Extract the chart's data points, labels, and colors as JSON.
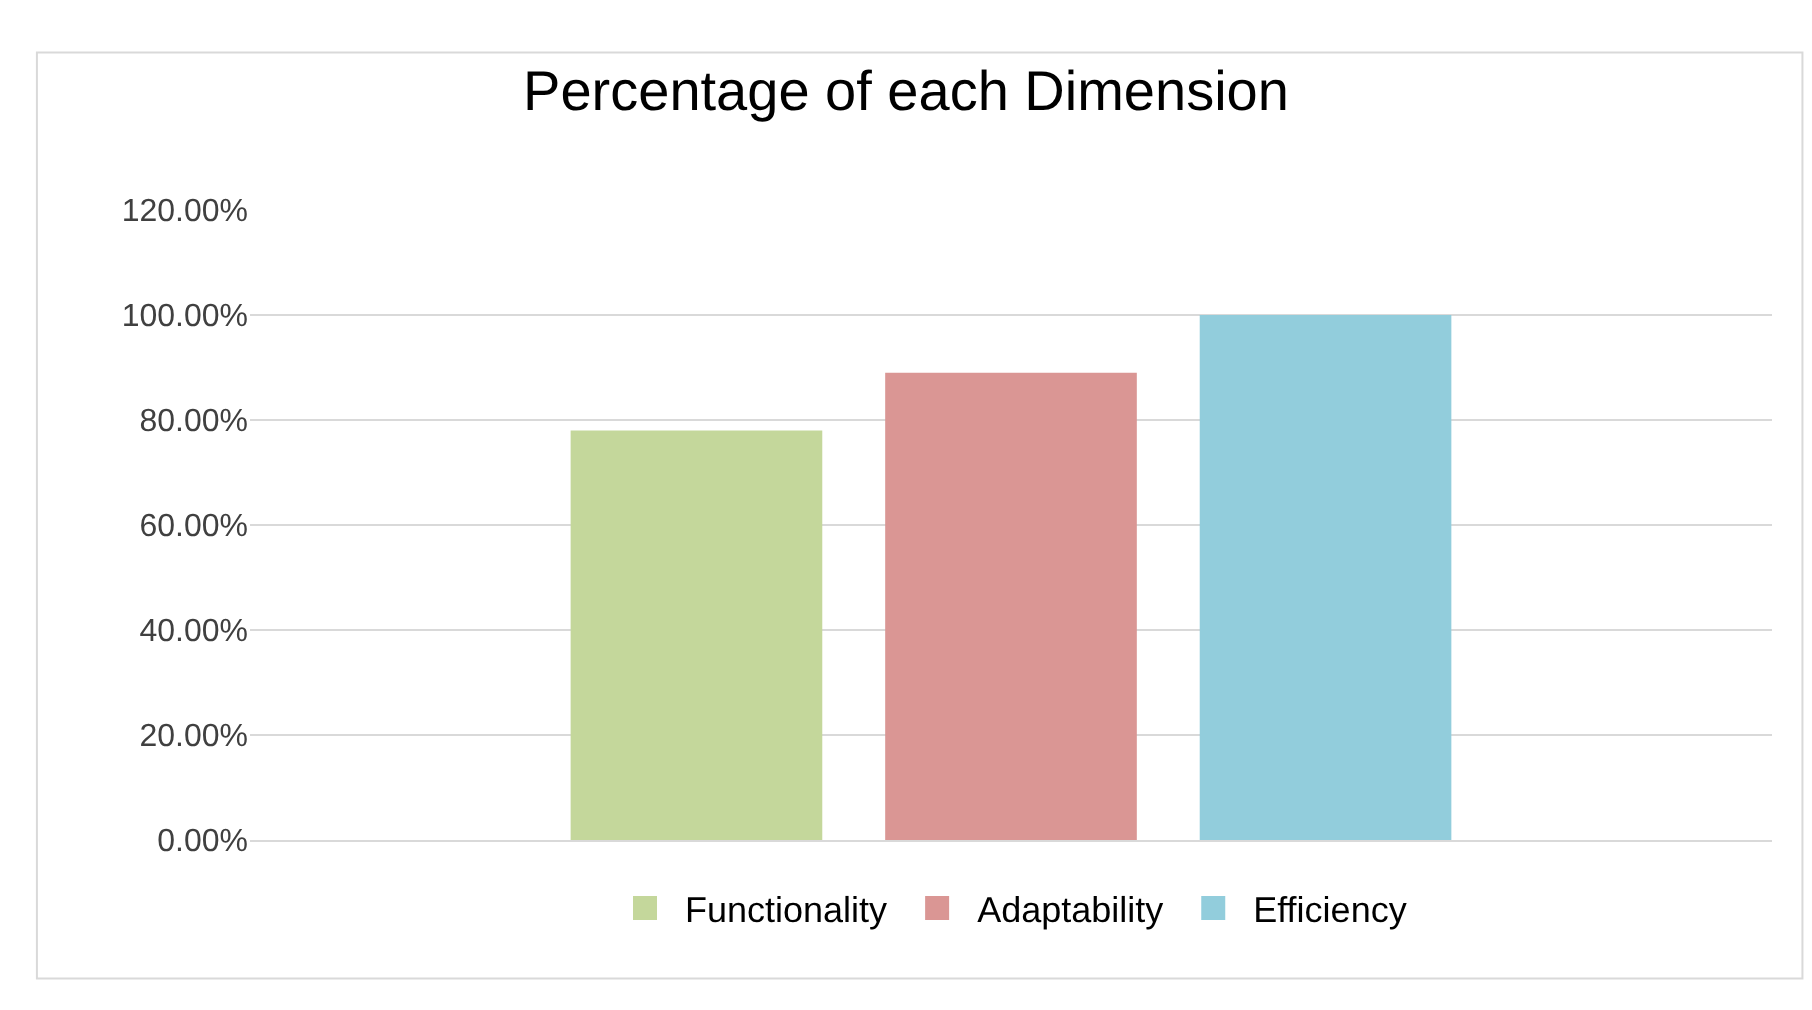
{
  "chart_data": {
    "type": "bar",
    "title": "Percentage of each Dimension",
    "categories": [
      null
    ],
    "series": [
      {
        "name": "Functionality",
        "color": "#c4d79b",
        "values": [
          78
        ]
      },
      {
        "name": "Adaptability",
        "color": "#da9694",
        "values": [
          89
        ]
      },
      {
        "name": "Efficiency",
        "color": "#92cddc",
        "values": [
          100
        ]
      }
    ],
    "ylim": [
      0,
      120
    ],
    "yticks": [
      {
        "value": 0,
        "label": "0.00%"
      },
      {
        "value": 20,
        "label": "20.00%"
      },
      {
        "value": 40,
        "label": "40.00%"
      },
      {
        "value": 60,
        "label": "60.00%"
      },
      {
        "value": 80,
        "label": "80.00%"
      },
      {
        "value": 100,
        "label": "100.00%"
      },
      {
        "value": 120,
        "label": "120.00%"
      }
    ],
    "grid": "y",
    "legend": "bottom"
  }
}
